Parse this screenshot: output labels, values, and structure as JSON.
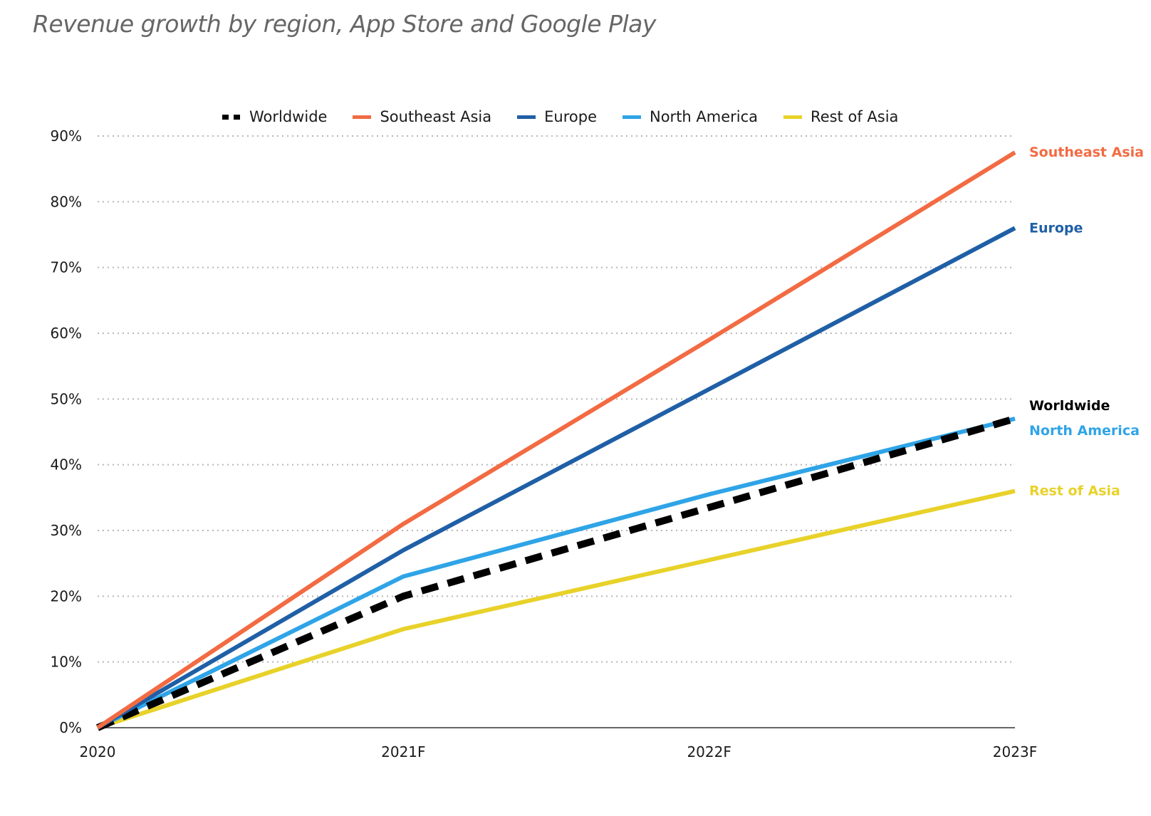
{
  "chart_data": {
    "type": "line",
    "title": "Revenue growth by region, App Store and Google Play",
    "xlabel": "",
    "ylabel": "",
    "categories": [
      "2020",
      "2021F",
      "2022F",
      "2023F"
    ],
    "y_tick_labels": [
      "0%",
      "10%",
      "20%",
      "30%",
      "40%",
      "50%",
      "60%",
      "70%",
      "80%",
      "90%"
    ],
    "ylim": [
      0,
      90
    ],
    "y_unit": "%",
    "grid": "horizontal dotted",
    "legend": "top",
    "series": [
      {
        "name": "Worldwide",
        "values": [
          0,
          20,
          33.5,
          47
        ],
        "color": "#000000",
        "dashed": true,
        "end_label": "Worldwide"
      },
      {
        "name": "Southeast Asia",
        "values": [
          0,
          31,
          59,
          87.5
        ],
        "color": "#f26b43",
        "dashed": false,
        "end_label": "Southeast Asia"
      },
      {
        "name": "Europe",
        "values": [
          0,
          27,
          51.5,
          76
        ],
        "color": "#1f5fa6",
        "dashed": false,
        "end_label": "Europe"
      },
      {
        "name": "North America",
        "values": [
          0,
          23,
          35.5,
          47
        ],
        "color": "#2fa4e7",
        "dashed": false,
        "end_label": "North America"
      },
      {
        "name": "Rest of Asia",
        "values": [
          0,
          15,
          25.5,
          36
        ],
        "color": "#e8d22a",
        "dashed": false,
        "end_label": "Rest of Asia"
      }
    ]
  }
}
